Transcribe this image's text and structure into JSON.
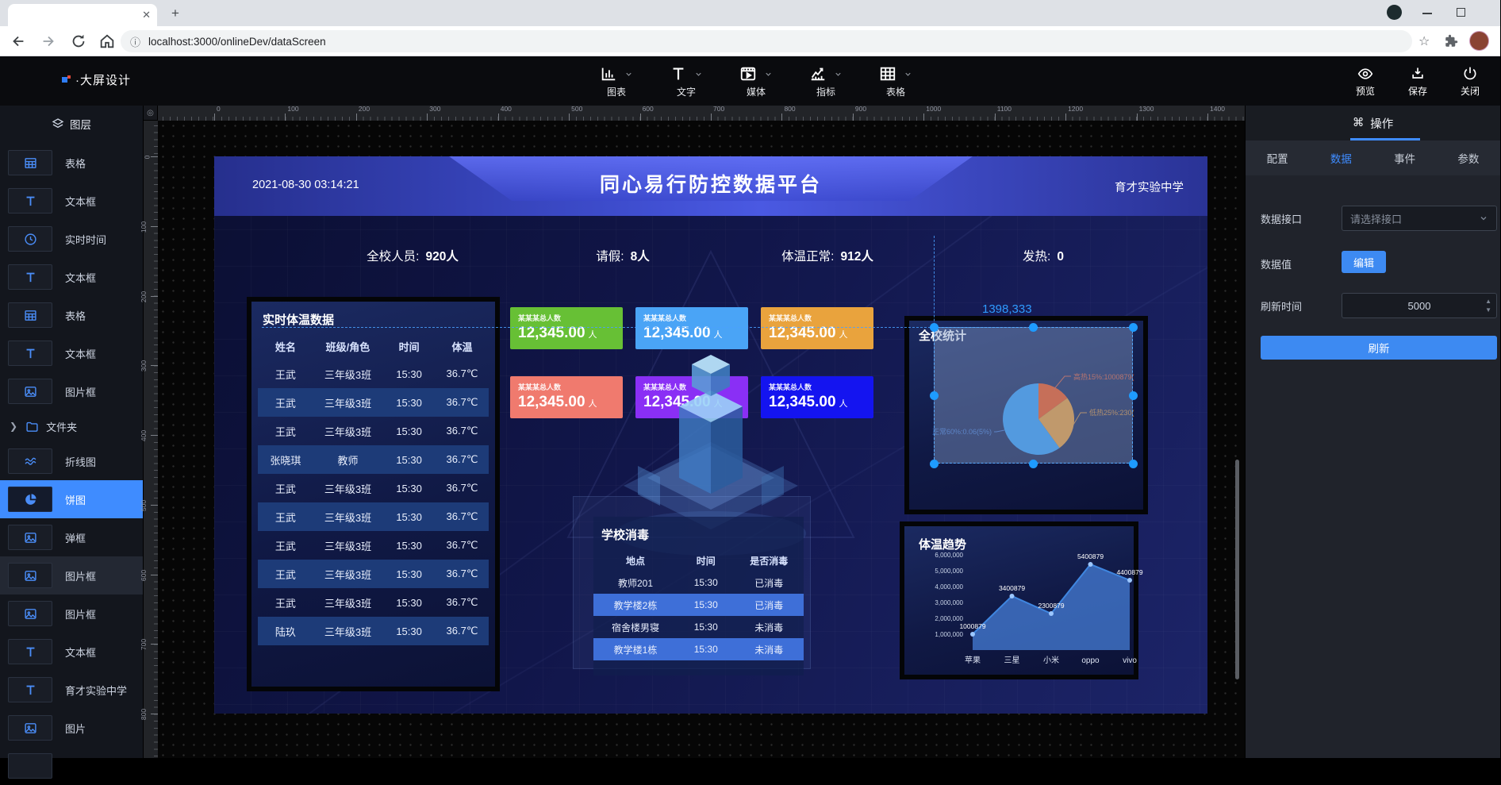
{
  "colors": {
    "accent": "#3f8cff",
    "selection": "#1e9bff",
    "guide": "#4aa0ff"
  },
  "browser": {
    "tab_title": "",
    "url": "localhost:3000/onlineDev/dataScreen"
  },
  "header": {
    "logo": "·大屏设计",
    "menus": [
      {
        "label": "图表",
        "icon": "chart-bar-icon"
      },
      {
        "label": "文字",
        "icon": "text-tool-icon"
      },
      {
        "label": "媒体",
        "icon": "media-icon"
      },
      {
        "label": "指标",
        "icon": "indicator-icon"
      },
      {
        "label": "表格",
        "icon": "grid-icon"
      }
    ],
    "actions": [
      {
        "label": "预览",
        "icon": "eye-icon"
      },
      {
        "label": "保存",
        "icon": "save-icon"
      },
      {
        "label": "关闭",
        "icon": "power-icon"
      }
    ]
  },
  "layers": {
    "title": "图层",
    "items": [
      {
        "label": "表格",
        "icon": "table-icon"
      },
      {
        "label": "文本框",
        "icon": "text-icon"
      },
      {
        "label": "实时时间",
        "icon": "clock-icon"
      },
      {
        "label": "文本框",
        "icon": "text-icon"
      },
      {
        "label": "表格",
        "icon": "table-icon"
      },
      {
        "label": "文本框",
        "icon": "text-icon"
      },
      {
        "label": "图片框",
        "icon": "image-icon"
      },
      {
        "label": "文件夹",
        "icon": "folder-icon",
        "type": "folder"
      },
      {
        "label": "折线图",
        "icon": "line-chart-icon"
      },
      {
        "label": "饼图",
        "icon": "pie-chart-icon",
        "selected": true
      },
      {
        "label": "弹框",
        "icon": "image-icon"
      },
      {
        "label": "图片框",
        "icon": "image-icon",
        "hover": true
      },
      {
        "label": "图片框",
        "icon": "image-icon"
      },
      {
        "label": "文本框",
        "icon": "text-icon"
      },
      {
        "label": "育才实验中学",
        "icon": "text-icon"
      },
      {
        "label": "图片",
        "icon": "image-icon"
      },
      {
        "label": "",
        "icon": ""
      }
    ]
  },
  "inspector": {
    "title": "操作",
    "title_icon": "⌘",
    "tabs": [
      {
        "label": "配置",
        "active": false
      },
      {
        "label": "数据",
        "active": true
      },
      {
        "label": "事件",
        "active": false
      },
      {
        "label": "参数",
        "active": false
      }
    ],
    "fields": {
      "api_label": "数据接口",
      "api_placeholder": "请选择接口",
      "value_label": "数据值",
      "edit_button": "编辑",
      "refresh_label": "刷新时间",
      "refresh_value": "5000",
      "refresh_button": "刷新"
    }
  },
  "rulers": {
    "h_ticks": [
      "0",
      "100",
      "200",
      "300",
      "400",
      "500",
      "600",
      "700",
      "800",
      "900",
      "1000",
      "1100",
      "1200",
      "1300",
      "1400"
    ],
    "v_ticks": [
      "0",
      "100",
      "200",
      "300",
      "400",
      "500",
      "600",
      "700",
      "800"
    ]
  },
  "screen": {
    "datetime": "2021-08-30 03:14:21",
    "title": "同心易行防控数据平台",
    "school": "育才实验中学",
    "stats": [
      {
        "label": "全校人员:",
        "value": "920人"
      },
      {
        "label": "请假:",
        "value": "8人"
      },
      {
        "label": "体温正常:",
        "value": "912人"
      },
      {
        "label": "发热:",
        "value": "0"
      }
    ],
    "cards": [
      {
        "label": "某某某总人数",
        "value": "12,345.00",
        "unit": "人",
        "color": "#67c035"
      },
      {
        "label": "某某某总人数",
        "value": "12,345.00",
        "unit": "人",
        "color": "#4aa4f6"
      },
      {
        "label": "某某某总人数",
        "value": "12,345.00",
        "unit": "人",
        "color": "#e9a33d"
      },
      {
        "label": "某某某总人数",
        "value": "12,345.00",
        "unit": "人",
        "color": "#f07a6e"
      },
      {
        "label": "某某某总人数",
        "value": "12,345.00",
        "unit": "人",
        "color": "#8a2ff5"
      },
      {
        "label": "某某某总人数",
        "value": "12,345.00",
        "unit": "人",
        "color": "#1414f0"
      }
    ],
    "temp_table": {
      "title": "实时体温数据",
      "columns": [
        "姓名",
        "班级/角色",
        "时间",
        "体温"
      ],
      "rows": [
        {
          "cells": [
            "王武",
            "三年级3班",
            "15:30",
            "36.7℃"
          ],
          "highlight": false
        },
        {
          "cells": [
            "王武",
            "三年级3班",
            "15:30",
            "36.7℃"
          ],
          "highlight": true
        },
        {
          "cells": [
            "王武",
            "三年级3班",
            "15:30",
            "36.7℃"
          ],
          "highlight": false
        },
        {
          "cells": [
            "张晓琪",
            "教师",
            "15:30",
            "36.7℃"
          ],
          "highlight": true
        },
        {
          "cells": [
            "王武",
            "三年级3班",
            "15:30",
            "36.7℃"
          ],
          "highlight": false
        },
        {
          "cells": [
            "王武",
            "三年级3班",
            "15:30",
            "36.7℃"
          ],
          "highlight": true
        },
        {
          "cells": [
            "王武",
            "三年级3班",
            "15:30",
            "36.7℃"
          ],
          "highlight": false
        },
        {
          "cells": [
            "王武",
            "三年级3班",
            "15:30",
            "36.7℃"
          ],
          "highlight": true
        },
        {
          "cells": [
            "王武",
            "三年级3班",
            "15:30",
            "36.7℃"
          ],
          "highlight": false
        },
        {
          "cells": [
            "陆玖",
            "三年级3班",
            "15:30",
            "36.7℃"
          ],
          "highlight": true
        }
      ]
    },
    "disinfect_table": {
      "title": "学校消毒",
      "columns": [
        "地点",
        "时间",
        "是否消毒"
      ],
      "rows": [
        {
          "cells": [
            "教师201",
            "15:30",
            "已消毒"
          ],
          "highlight": false
        },
        {
          "cells": [
            "教学楼2栋",
            "15:30",
            "已消毒"
          ],
          "highlight": true
        },
        {
          "cells": [
            "宿舍楼男寝",
            "15:30",
            "未消毒"
          ],
          "highlight": false
        },
        {
          "cells": [
            "教学楼1栋",
            "15:30",
            "未消毒"
          ],
          "highlight": true
        }
      ]
    },
    "selection_tooltip": "1398,333"
  },
  "chart_data": [
    {
      "type": "pie",
      "title": "全校统计",
      "slices": [
        {
          "name": "高热",
          "percent": 15,
          "label": "高热15%:1000879(",
          "color": "#ff4d00",
          "label_color": "#e0562b"
        },
        {
          "name": "低热",
          "percent": 25,
          "label": "低热25%:230(",
          "color": "#f59a23",
          "label_color": "#d98b2a"
        },
        {
          "name": "正常",
          "percent": 60,
          "label": "正常60%:0.06(5%)",
          "color": "#2e9cf5",
          "label_color": "#3f74c9"
        }
      ]
    },
    {
      "type": "area",
      "title": "体温趋势",
      "categories": [
        "苹果",
        "三星",
        "小米",
        "oppo",
        "vivo"
      ],
      "values": [
        1000879,
        3400879,
        2300879,
        5400879,
        4400879
      ],
      "point_labels": [
        "1000879",
        "3400879",
        "2300879",
        "5400879",
        "4400879"
      ],
      "y_ticks": [
        "6,000,000",
        "5,000,000",
        "4,000,000",
        "3,000,000",
        "2,000,000",
        "1,000,000"
      ],
      "ylim": [
        0,
        6000000
      ],
      "line_color": "#3f86e0",
      "fill_color": "rgba(70,125,215,0.75)"
    }
  ]
}
